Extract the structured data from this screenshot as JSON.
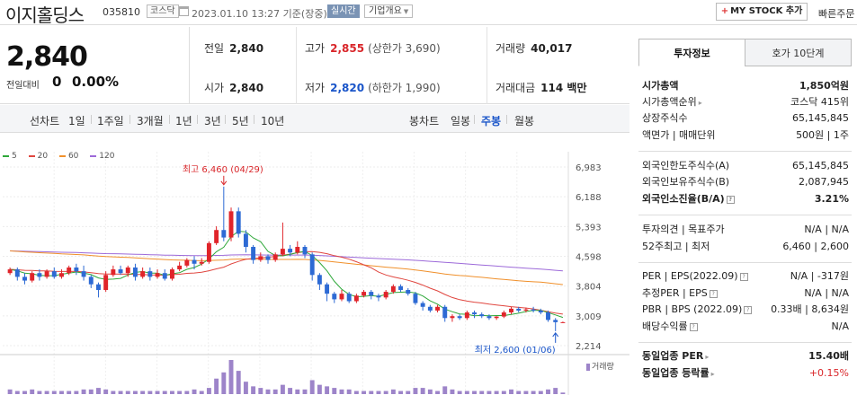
{
  "header": {
    "company_name": "이지홀딩스",
    "stock_code": "035810",
    "market_badge": "코스닥",
    "datetime": "2023.01.10 13:27 기준(장중)",
    "realtime_label": "실시간",
    "overview_label": "기업개요",
    "mystock_label": "MY STOCK 추가",
    "quick_order_label": "빠른주문"
  },
  "price": {
    "current": "2,840",
    "change_label": "전일대비",
    "change_value": "0",
    "change_pct": "0.00%"
  },
  "quote": {
    "prev_close_label": "전일",
    "prev_close": "2,840",
    "open_label": "시가",
    "open": "2,840",
    "high_label": "고가",
    "high": "2,855",
    "upper_limit": "(상한가 3,690)",
    "low_label": "저가",
    "low": "2,820",
    "lower_limit": "(하한가 1,990)",
    "volume_label": "거래량",
    "volume": "40,017",
    "amount_label": "거래대금",
    "amount": "114 백만"
  },
  "period_bar": {
    "line_label": "선차트",
    "periods": [
      "1일",
      "1주일",
      "3개월",
      "1년",
      "3년",
      "5년",
      "10년"
    ],
    "candle_label": "봉차트",
    "candles": [
      "일봉",
      "주봉",
      "월봉"
    ],
    "active_candle": "주봉"
  },
  "chart_data": {
    "type": "candlestick",
    "ma_legend": [
      {
        "name": "5",
        "color": "#2fa83a"
      },
      {
        "name": "20",
        "color": "#e0463f"
      },
      {
        "name": "60",
        "color": "#f0902b"
      },
      {
        "name": "120",
        "color": "#9d6ad9"
      }
    ],
    "y_ticks": [
      "6,983",
      "6,188",
      "5,393",
      "4,598",
      "3,804",
      "3,009",
      "2,214"
    ],
    "ylim": [
      2214,
      6983
    ],
    "high_annotation": "최고 6,460 (04/29)",
    "low_annotation": "최저 2,600 (01/06)",
    "volume_label": "거래량",
    "candles": [
      [
        4150,
        4250,
        4100,
        4300
      ],
      [
        4250,
        4050,
        3950,
        4300
      ],
      [
        4050,
        3950,
        3850,
        4150
      ],
      [
        3950,
        4150,
        3900,
        4200
      ],
      [
        4150,
        4050,
        3950,
        4250
      ],
      [
        4050,
        4200,
        4000,
        4250
      ],
      [
        4200,
        4050,
        4000,
        4300
      ],
      [
        4050,
        4150,
        4000,
        4250
      ],
      [
        4150,
        4300,
        4100,
        4350
      ],
      [
        4300,
        4200,
        4100,
        4400
      ],
      [
        4200,
        4050,
        3950,
        4350
      ],
      [
        4050,
        3850,
        3750,
        4100
      ],
      [
        3850,
        3700,
        3500,
        3900
      ],
      [
        3700,
        4100,
        3650,
        4200
      ],
      [
        4100,
        4250,
        4050,
        4350
      ],
      [
        4250,
        4150,
        4100,
        4350
      ],
      [
        4150,
        4300,
        4050,
        4350
      ],
      [
        4300,
        4050,
        3950,
        4400
      ],
      [
        4050,
        4200,
        4000,
        4300
      ],
      [
        4200,
        4050,
        3950,
        4300
      ],
      [
        4050,
        4150,
        4000,
        4250
      ],
      [
        4150,
        4000,
        3950,
        4250
      ],
      [
        4000,
        4250,
        3950,
        4300
      ],
      [
        4250,
        4350,
        4200,
        4450
      ],
      [
        4350,
        4500,
        4300,
        4550
      ],
      [
        4500,
        4400,
        4250,
        4600
      ],
      [
        4400,
        4450,
        4350,
        4550
      ],
      [
        4450,
        4950,
        4400,
        5000
      ],
      [
        4950,
        5300,
        4900,
        5400
      ],
      [
        5300,
        5100,
        5000,
        6460
      ],
      [
        5100,
        5800,
        5000,
        5900
      ],
      [
        5800,
        5200,
        5100,
        5900
      ],
      [
        5200,
        4850,
        4700,
        5300
      ],
      [
        4850,
        4500,
        4400,
        4900
      ],
      [
        4500,
        4600,
        4450,
        4700
      ],
      [
        4600,
        4500,
        4400,
        4650
      ],
      [
        4500,
        4650,
        4450,
        4700
      ],
      [
        4650,
        4800,
        4600,
        5500
      ],
      [
        4800,
        4700,
        4600,
        4900
      ],
      [
        4700,
        4850,
        4650,
        5000
      ],
      [
        4850,
        4650,
        4550,
        4900
      ],
      [
        4650,
        4100,
        3950,
        4700
      ],
      [
        4100,
        3850,
        3700,
        4150
      ],
      [
        3850,
        3600,
        3400,
        3900
      ],
      [
        3600,
        3450,
        3350,
        3650
      ],
      [
        3450,
        3600,
        3400,
        3700
      ],
      [
        3600,
        3400,
        3350,
        3650
      ],
      [
        3400,
        3550,
        3350,
        3600
      ],
      [
        3550,
        3650,
        3500,
        3700
      ],
      [
        3650,
        3550,
        3450,
        3700
      ],
      [
        3550,
        3500,
        3400,
        3600
      ],
      [
        3500,
        3650,
        3450,
        3700
      ],
      [
        3650,
        3800,
        3600,
        3850
      ],
      [
        3800,
        3700,
        3650,
        3850
      ],
      [
        3700,
        3600,
        3550,
        3750
      ],
      [
        3600,
        3350,
        3300,
        3650
      ],
      [
        3350,
        3250,
        3150,
        3400
      ],
      [
        3250,
        3150,
        3100,
        3300
      ],
      [
        3150,
        3250,
        3100,
        3300
      ],
      [
        3250,
        2950,
        2850,
        3300
      ],
      [
        2950,
        3000,
        2850,
        3050
      ],
      [
        3000,
        2950,
        2900,
        3050
      ],
      [
        2950,
        3100,
        2900,
        3150
      ],
      [
        3100,
        3050,
        2950,
        3150
      ],
      [
        3050,
        3000,
        2950,
        3100
      ],
      [
        3000,
        2950,
        2900,
        3050
      ],
      [
        2950,
        2990,
        2900,
        3000
      ],
      [
        2990,
        3100,
        2950,
        3150
      ],
      [
        3100,
        3200,
        3050,
        3250
      ],
      [
        3200,
        3150,
        3100,
        3250
      ],
      [
        3150,
        3180,
        3100,
        3230
      ],
      [
        3180,
        3150,
        3100,
        3250
      ],
      [
        3150,
        3100,
        3050,
        3200
      ],
      [
        3100,
        2900,
        2850,
        3150
      ],
      [
        2900,
        2840,
        2600,
        2950
      ],
      [
        2840,
        2840,
        2820,
        2855
      ]
    ],
    "volumes": [
      3,
      2,
      2,
      3,
      2,
      2,
      2,
      2,
      2,
      2,
      3,
      3,
      4,
      3,
      2,
      2,
      2,
      2,
      2,
      2,
      2,
      2,
      2,
      2,
      2,
      3,
      2,
      4,
      10,
      14,
      22,
      15,
      8,
      5,
      4,
      3,
      3,
      6,
      4,
      3,
      3,
      9,
      6,
      5,
      4,
      3,
      3,
      2,
      2,
      2,
      2,
      2,
      3,
      2,
      2,
      4,
      4,
      3,
      2,
      5,
      3,
      2,
      2,
      2,
      2,
      2,
      2,
      2,
      3,
      2,
      2,
      2,
      2,
      3,
      4,
      1
    ]
  },
  "right_panel": {
    "tab_active": "투자정보",
    "tab_other": "호가 10단계",
    "market_cap_label": "시가총액",
    "market_cap": "1,850억원",
    "cap_rank_label": "시가총액순위",
    "cap_rank": "코스닥 415위",
    "shares_label": "상장주식수",
    "shares": "65,145,845",
    "par_label": "액면가 | 매매단위",
    "par": "500원 | 1주",
    "foreign_limit_label": "외국인한도주식수(A)",
    "foreign_limit": "65,145,845",
    "foreign_hold_label": "외국인보유주식수(B)",
    "foreign_hold": "2,087,945",
    "foreign_rate_label": "외국인소진율(B/A)",
    "foreign_rate": "3.21%",
    "opinion_label": "투자의견 | 목표주가",
    "opinion": "N/A | N/A",
    "week52_label": "52주최고 | 최저",
    "week52": "6,460 | 2,600",
    "per_label": "PER | EPS(2022.09)",
    "per": "N/A | -317원",
    "est_per_label": "추정PER | EPS",
    "est_per": "N/A | N/A",
    "pbr_label": "PBR | BPS (2022.09)",
    "pbr": "0.33배 | 8,634원",
    "div_label": "배당수익률",
    "div": "N/A",
    "ind_per_label": "동일업종 PER",
    "ind_per": "15.40배",
    "ind_rate_label": "동일업종 등락률",
    "ind_rate": "+0.15%"
  }
}
